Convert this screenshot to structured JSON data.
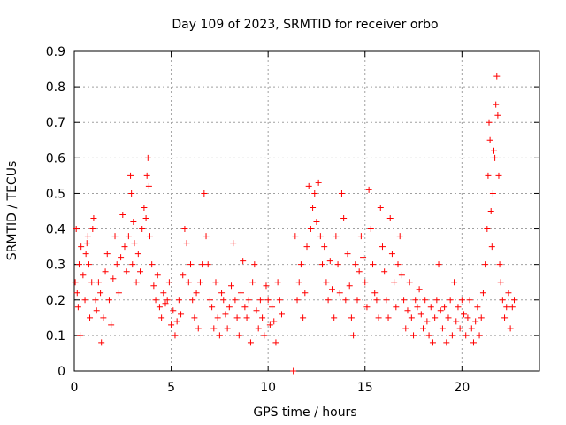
{
  "chart_data": {
    "type": "scatter",
    "title": "Day 109 of 2023, SRMTID for receiver orbo",
    "xlabel": "GPS time / hours",
    "ylabel": "SRMTID / TECUs",
    "xlim": [
      0,
      24
    ],
    "ylim": [
      0,
      0.9
    ],
    "xticks": [
      0,
      5,
      10,
      15,
      20
    ],
    "yticks": [
      0,
      0.1,
      0.2,
      0.3,
      0.4,
      0.5,
      0.6,
      0.7,
      0.8,
      0.9
    ],
    "xtick_labels": [
      "0",
      "5",
      "10",
      "15",
      "20"
    ],
    "ytick_labels": [
      "0",
      "0.1",
      "0.2",
      "0.3",
      "0.4",
      "0.5",
      "0.6",
      "0.7",
      "0.8",
      "0.9"
    ],
    "grid": true,
    "marker": "plus",
    "color": "#ff0000",
    "series": [
      {
        "name": "SRMTID",
        "points": [
          [
            0.05,
            0.25
          ],
          [
            0.1,
            0.4
          ],
          [
            0.15,
            0.22
          ],
          [
            0.2,
            0.18
          ],
          [
            0.25,
            0.3
          ],
          [
            0.3,
            0.1
          ],
          [
            0.35,
            0.35
          ],
          [
            0.45,
            0.27
          ],
          [
            0.55,
            0.2
          ],
          [
            0.6,
            0.33
          ],
          [
            0.65,
            0.36
          ],
          [
            0.7,
            0.38
          ],
          [
            0.75,
            0.3
          ],
          [
            0.8,
            0.15
          ],
          [
            0.9,
            0.25
          ],
          [
            0.95,
            0.4
          ],
          [
            1.0,
            0.43
          ],
          [
            1.1,
            0.2
          ],
          [
            1.15,
            0.17
          ],
          [
            1.25,
            0.25
          ],
          [
            1.35,
            0.22
          ],
          [
            1.4,
            0.08
          ],
          [
            1.5,
            0.15
          ],
          [
            1.6,
            0.28
          ],
          [
            1.7,
            0.33
          ],
          [
            1.8,
            0.2
          ],
          [
            1.9,
            0.13
          ],
          [
            2.0,
            0.26
          ],
          [
            2.1,
            0.38
          ],
          [
            2.2,
            0.3
          ],
          [
            2.3,
            0.22
          ],
          [
            2.4,
            0.32
          ],
          [
            2.5,
            0.44
          ],
          [
            2.6,
            0.35
          ],
          [
            2.7,
            0.28
          ],
          [
            2.8,
            0.38
          ],
          [
            2.9,
            0.55
          ],
          [
            2.95,
            0.5
          ],
          [
            3.0,
            0.3
          ],
          [
            3.05,
            0.42
          ],
          [
            3.1,
            0.36
          ],
          [
            3.2,
            0.25
          ],
          [
            3.3,
            0.33
          ],
          [
            3.4,
            0.28
          ],
          [
            3.5,
            0.4
          ],
          [
            3.6,
            0.46
          ],
          [
            3.7,
            0.43
          ],
          [
            3.75,
            0.55
          ],
          [
            3.8,
            0.6
          ],
          [
            3.85,
            0.52
          ],
          [
            3.9,
            0.38
          ],
          [
            4.0,
            0.3
          ],
          [
            4.1,
            0.24
          ],
          [
            4.2,
            0.2
          ],
          [
            4.3,
            0.27
          ],
          [
            4.4,
            0.18
          ],
          [
            4.5,
            0.15
          ],
          [
            4.6,
            0.22
          ],
          [
            4.7,
            0.19
          ],
          [
            4.8,
            0.2
          ],
          [
            4.9,
            0.25
          ],
          [
            5.0,
            0.13
          ],
          [
            5.1,
            0.17
          ],
          [
            5.2,
            0.1
          ],
          [
            5.3,
            0.14
          ],
          [
            5.4,
            0.2
          ],
          [
            5.5,
            0.16
          ],
          [
            5.6,
            0.27
          ],
          [
            5.7,
            0.4
          ],
          [
            5.8,
            0.36
          ],
          [
            5.9,
            0.25
          ],
          [
            6.0,
            0.3
          ],
          [
            6.1,
            0.2
          ],
          [
            6.2,
            0.15
          ],
          [
            6.3,
            0.22
          ],
          [
            6.4,
            0.12
          ],
          [
            6.5,
            0.25
          ],
          [
            6.6,
            0.3
          ],
          [
            6.7,
            0.5
          ],
          [
            6.8,
            0.38
          ],
          [
            6.9,
            0.3
          ],
          [
            7.0,
            0.2
          ],
          [
            7.1,
            0.18
          ],
          [
            7.2,
            0.12
          ],
          [
            7.3,
            0.25
          ],
          [
            7.4,
            0.15
          ],
          [
            7.5,
            0.1
          ],
          [
            7.6,
            0.22
          ],
          [
            7.7,
            0.2
          ],
          [
            7.8,
            0.16
          ],
          [
            7.9,
            0.12
          ],
          [
            8.0,
            0.18
          ],
          [
            8.1,
            0.24
          ],
          [
            8.2,
            0.36
          ],
          [
            8.3,
            0.2
          ],
          [
            8.4,
            0.15
          ],
          [
            8.5,
            0.1
          ],
          [
            8.6,
            0.22
          ],
          [
            8.7,
            0.31
          ],
          [
            8.8,
            0.18
          ],
          [
            8.9,
            0.15
          ],
          [
            9.0,
            0.2
          ],
          [
            9.1,
            0.08
          ],
          [
            9.2,
            0.25
          ],
          [
            9.3,
            0.3
          ],
          [
            9.4,
            0.17
          ],
          [
            9.5,
            0.12
          ],
          [
            9.6,
            0.2
          ],
          [
            9.7,
            0.15
          ],
          [
            9.8,
            0.1
          ],
          [
            9.9,
            0.24
          ],
          [
            10.0,
            0.2
          ],
          [
            10.1,
            0.13
          ],
          [
            10.2,
            0.18
          ],
          [
            10.3,
            0.14
          ],
          [
            10.4,
            0.08
          ],
          [
            10.5,
            0.25
          ],
          [
            10.6,
            0.2
          ],
          [
            10.7,
            0.16
          ],
          [
            11.3,
            0.0
          ],
          [
            11.4,
            0.38
          ],
          [
            11.5,
            0.2
          ],
          [
            11.6,
            0.25
          ],
          [
            11.7,
            0.3
          ],
          [
            11.8,
            0.15
          ],
          [
            11.9,
            0.22
          ],
          [
            12.0,
            0.35
          ],
          [
            12.1,
            0.52
          ],
          [
            12.2,
            0.4
          ],
          [
            12.3,
            0.46
          ],
          [
            12.4,
            0.5
          ],
          [
            12.5,
            0.42
          ],
          [
            12.6,
            0.53
          ],
          [
            12.7,
            0.38
          ],
          [
            12.8,
            0.3
          ],
          [
            12.9,
            0.35
          ],
          [
            13.0,
            0.25
          ],
          [
            13.1,
            0.2
          ],
          [
            13.2,
            0.31
          ],
          [
            13.3,
            0.23
          ],
          [
            13.4,
            0.15
          ],
          [
            13.5,
            0.38
          ],
          [
            13.6,
            0.3
          ],
          [
            13.7,
            0.22
          ],
          [
            13.8,
            0.5
          ],
          [
            13.9,
            0.43
          ],
          [
            14.0,
            0.2
          ],
          [
            14.1,
            0.33
          ],
          [
            14.2,
            0.24
          ],
          [
            14.3,
            0.15
          ],
          [
            14.4,
            0.1
          ],
          [
            14.5,
            0.3
          ],
          [
            14.6,
            0.2
          ],
          [
            14.7,
            0.28
          ],
          [
            14.8,
            0.38
          ],
          [
            14.9,
            0.32
          ],
          [
            15.0,
            0.25
          ],
          [
            15.1,
            0.18
          ],
          [
            15.2,
            0.51
          ],
          [
            15.3,
            0.4
          ],
          [
            15.4,
            0.3
          ],
          [
            15.5,
            0.22
          ],
          [
            15.6,
            0.2
          ],
          [
            15.7,
            0.15
          ],
          [
            15.8,
            0.46
          ],
          [
            15.9,
            0.35
          ],
          [
            16.0,
            0.28
          ],
          [
            16.1,
            0.2
          ],
          [
            16.2,
            0.15
          ],
          [
            16.3,
            0.43
          ],
          [
            16.4,
            0.33
          ],
          [
            16.5,
            0.25
          ],
          [
            16.6,
            0.18
          ],
          [
            16.7,
            0.3
          ],
          [
            16.8,
            0.38
          ],
          [
            16.9,
            0.27
          ],
          [
            17.0,
            0.2
          ],
          [
            17.1,
            0.12
          ],
          [
            17.2,
            0.17
          ],
          [
            17.3,
            0.25
          ],
          [
            17.4,
            0.15
          ],
          [
            17.5,
            0.1
          ],
          [
            17.6,
            0.2
          ],
          [
            17.7,
            0.18
          ],
          [
            17.8,
            0.23
          ],
          [
            17.9,
            0.16
          ],
          [
            18.0,
            0.12
          ],
          [
            18.1,
            0.2
          ],
          [
            18.2,
            0.14
          ],
          [
            18.3,
            0.1
          ],
          [
            18.4,
            0.18
          ],
          [
            18.5,
            0.08
          ],
          [
            18.6,
            0.15
          ],
          [
            18.7,
            0.2
          ],
          [
            18.8,
            0.3
          ],
          [
            18.9,
            0.17
          ],
          [
            19.0,
            0.12
          ],
          [
            19.1,
            0.18
          ],
          [
            19.2,
            0.08
          ],
          [
            19.3,
            0.15
          ],
          [
            19.4,
            0.2
          ],
          [
            19.5,
            0.1
          ],
          [
            19.6,
            0.25
          ],
          [
            19.7,
            0.14
          ],
          [
            19.8,
            0.18
          ],
          [
            19.9,
            0.12
          ],
          [
            20.0,
            0.2
          ],
          [
            20.1,
            0.16
          ],
          [
            20.2,
            0.1
          ],
          [
            20.3,
            0.15
          ],
          [
            20.4,
            0.2
          ],
          [
            20.5,
            0.12
          ],
          [
            20.6,
            0.08
          ],
          [
            20.7,
            0.14
          ],
          [
            20.8,
            0.18
          ],
          [
            20.9,
            0.1
          ],
          [
            21.0,
            0.15
          ],
          [
            21.1,
            0.22
          ],
          [
            21.2,
            0.3
          ],
          [
            21.3,
            0.4
          ],
          [
            21.35,
            0.55
          ],
          [
            21.4,
            0.7
          ],
          [
            21.45,
            0.65
          ],
          [
            21.5,
            0.45
          ],
          [
            21.55,
            0.35
          ],
          [
            21.6,
            0.5
          ],
          [
            21.65,
            0.62
          ],
          [
            21.7,
            0.6
          ],
          [
            21.75,
            0.75
          ],
          [
            21.8,
            0.83
          ],
          [
            21.85,
            0.72
          ],
          [
            21.9,
            0.55
          ],
          [
            21.95,
            0.3
          ],
          [
            22.0,
            0.25
          ],
          [
            22.1,
            0.2
          ],
          [
            22.2,
            0.15
          ],
          [
            22.3,
            0.18
          ],
          [
            22.4,
            0.22
          ],
          [
            22.5,
            0.12
          ],
          [
            22.6,
            0.18
          ],
          [
            22.7,
            0.2
          ]
        ]
      }
    ]
  }
}
